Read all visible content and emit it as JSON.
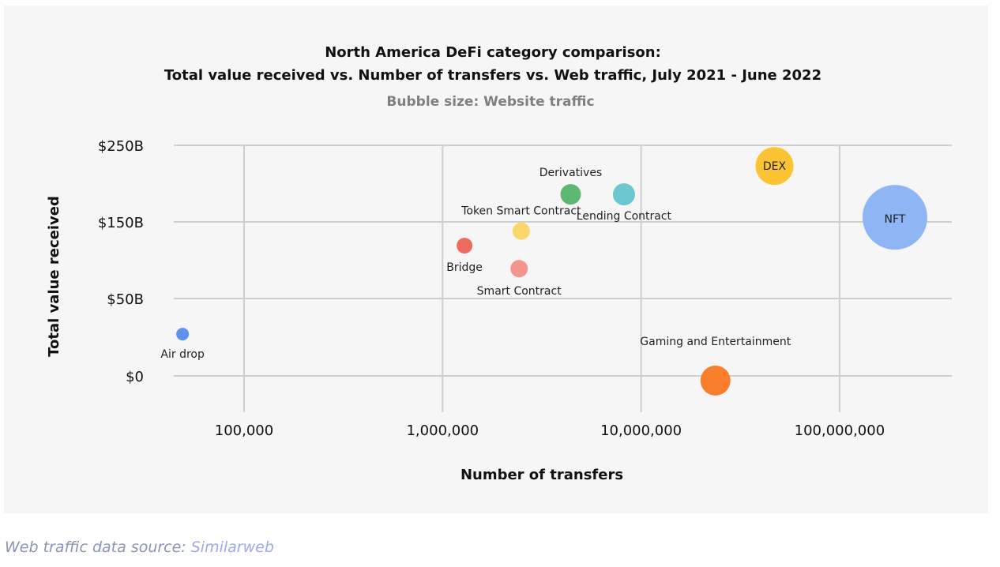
{
  "chart_data": {
    "type": "scatter",
    "title_line1": "North America DeFi category comparison:",
    "title_line2": "Total value received vs. Number of transfers vs. Web traffic, July 2021 - June 2022",
    "subtitle": "Bubble size: Website traffic",
    "xlabel": "Number of transfers",
    "ylabel": "Total value received",
    "xscale": "log",
    "xticks": [
      {
        "value": 100000,
        "label": "100,000"
      },
      {
        "value": 1000000,
        "label": "1,000,000"
      },
      {
        "value": 10000000,
        "label": "10,000,000"
      },
      {
        "value": 100000000,
        "label": "100,000,000"
      }
    ],
    "yticks": [
      {
        "value": 0,
        "label": "$0"
      },
      {
        "value": 50,
        "label": "$50B"
      },
      {
        "value": 150,
        "label": "$150B"
      },
      {
        "value": 250,
        "label": "$250B"
      }
    ],
    "grid": true,
    "points": [
      {
        "name": "Air drop",
        "x": 49000,
        "y": 27,
        "size": 8,
        "color": "#5b93ee",
        "label_pos": "below"
      },
      {
        "name": "Bridge",
        "x": 1290000,
        "y": 119,
        "size": 10,
        "color": "#ee6a5e",
        "label_pos": "below"
      },
      {
        "name": "Smart Contract",
        "x": 2430000,
        "y": 89,
        "size": 11,
        "color": "#f29590",
        "label_pos": "below"
      },
      {
        "name": "Token Smart Contract",
        "x": 2490000,
        "y": 138,
        "size": 11,
        "color": "#fbd66b",
        "label_pos": "above"
      },
      {
        "name": "Derivatives",
        "x": 4420000,
        "y": 186,
        "size": 13,
        "color": "#5cb872",
        "label_pos": "above"
      },
      {
        "name": "Lending Contract",
        "x": 8200000,
        "y": 186,
        "size": 14,
        "color": "#6cc8d0",
        "label_pos": "below"
      },
      {
        "name": "DEX",
        "x": 47000000,
        "y": 223,
        "size": 24,
        "color": "#fcc432",
        "label_pos": "inside"
      },
      {
        "name": "NFT",
        "x": 190000000,
        "y": 156,
        "size": 41,
        "color": "#8fb6f4",
        "label_pos": "inside"
      },
      {
        "name": "Gaming and Entertainment",
        "x": 23700000,
        "y": -3,
        "size": 19,
        "color": "#fa7f2c",
        "label_pos": "above"
      }
    ]
  },
  "footer": {
    "prefix": "Web traffic data source: ",
    "link": "Similarweb"
  }
}
